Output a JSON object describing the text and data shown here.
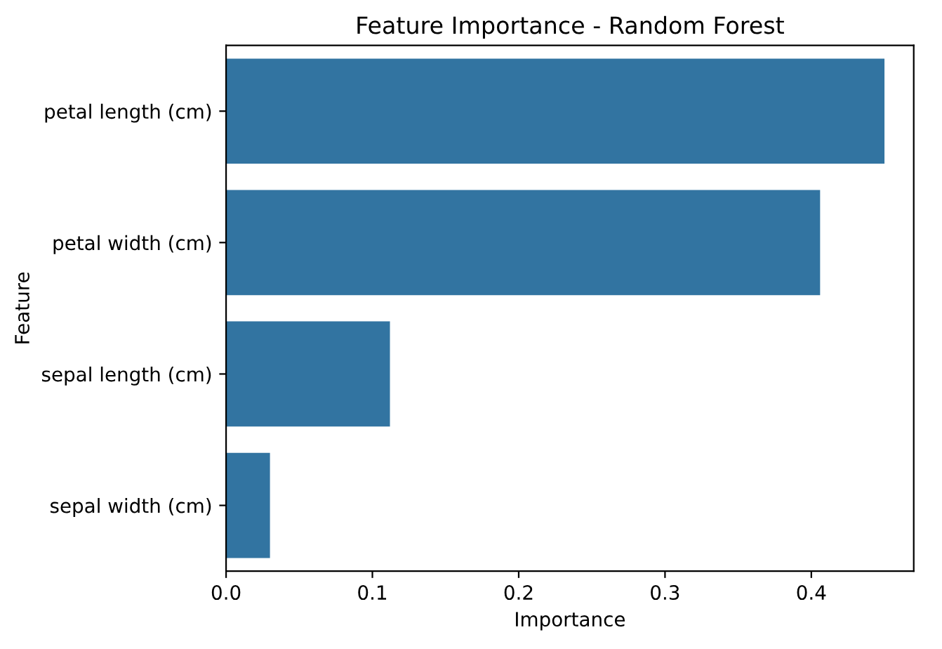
{
  "chart_data": {
    "type": "bar",
    "orientation": "horizontal",
    "title": "Feature Importance - Random Forest",
    "xlabel": "Importance",
    "ylabel": "Feature",
    "categories": [
      "petal length (cm)",
      "petal width (cm)",
      "sepal length (cm)",
      "sepal width (cm)"
    ],
    "values": [
      0.45,
      0.406,
      0.112,
      0.03
    ],
    "color": "#3274a1",
    "xlim": [
      0,
      0.47
    ],
    "xticks": [
      {
        "value": 0,
        "label": "0.0"
      },
      0.1,
      0.2,
      0.3,
      0.4
    ],
    "grid": false
  }
}
